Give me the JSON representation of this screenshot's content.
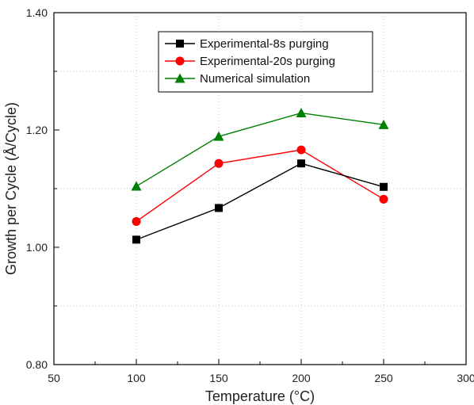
{
  "chart_data": {
    "type": "line",
    "xlabel": "Temperature (°C)",
    "ylabel": "Growth per Cycle (Å/Cycle)",
    "xlim": [
      50,
      300
    ],
    "ylim": [
      0.8,
      1.4
    ],
    "x_ticks": [
      "50",
      "100",
      "150",
      "200",
      "250",
      "300"
    ],
    "y_ticks": [
      "0.80",
      "1.00",
      "1.20",
      "1.40"
    ],
    "x": [
      100,
      150,
      200,
      250
    ],
    "grid": "dotted",
    "legend_position": "top-center",
    "series": [
      {
        "name": "Experimental-8s purging",
        "values": [
          1.013,
          1.067,
          1.143,
          1.103
        ],
        "color": "#000000",
        "marker": "square"
      },
      {
        "name": "Experimental-20s purging",
        "values": [
          1.044,
          1.143,
          1.166,
          1.082
        ],
        "color": "#ff0000",
        "marker": "circle"
      },
      {
        "name": "Numerical simulation",
        "values": [
          1.104,
          1.189,
          1.229,
          1.209
        ],
        "color": "#008000",
        "marker": "triangle"
      }
    ]
  }
}
